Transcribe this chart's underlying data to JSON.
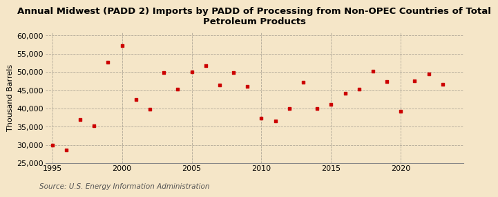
{
  "title": "Annual Midwest (PADD 2) Imports by PADD of Processing from Non-OPEC Countries of Total\nPetroleum Products",
  "ylabel": "Thousand Barrels",
  "source": "Source: U.S. Energy Information Administration",
  "background_color": "#f5e6c8",
  "marker_color": "#cc0000",
  "years": [
    1995,
    1996,
    1997,
    1998,
    1999,
    2000,
    2001,
    2002,
    2003,
    2004,
    2005,
    2006,
    2007,
    2008,
    2009,
    2010,
    2011,
    2012,
    2013,
    2014,
    2015,
    2016,
    2017,
    2018,
    2019,
    2020,
    2021,
    2022,
    2023
  ],
  "values": [
    30000,
    28700,
    37000,
    35200,
    52700,
    57200,
    42500,
    39700,
    49800,
    45300,
    50000,
    51700,
    46500,
    49800,
    46000,
    37300,
    36500,
    39900,
    47200,
    39900,
    41200,
    44100,
    45200,
    50200,
    47300,
    39300,
    47500,
    49400,
    46600
  ],
  "xlim": [
    1994.5,
    2024.5
  ],
  "ylim": [
    25000,
    61000
  ],
  "yticks": [
    25000,
    30000,
    35000,
    40000,
    45000,
    50000,
    55000,
    60000
  ],
  "xticks": [
    1995,
    2000,
    2005,
    2010,
    2015,
    2020
  ],
  "title_fontsize": 9.5,
  "ylabel_fontsize": 8,
  "tick_fontsize": 8,
  "source_fontsize": 7.5
}
